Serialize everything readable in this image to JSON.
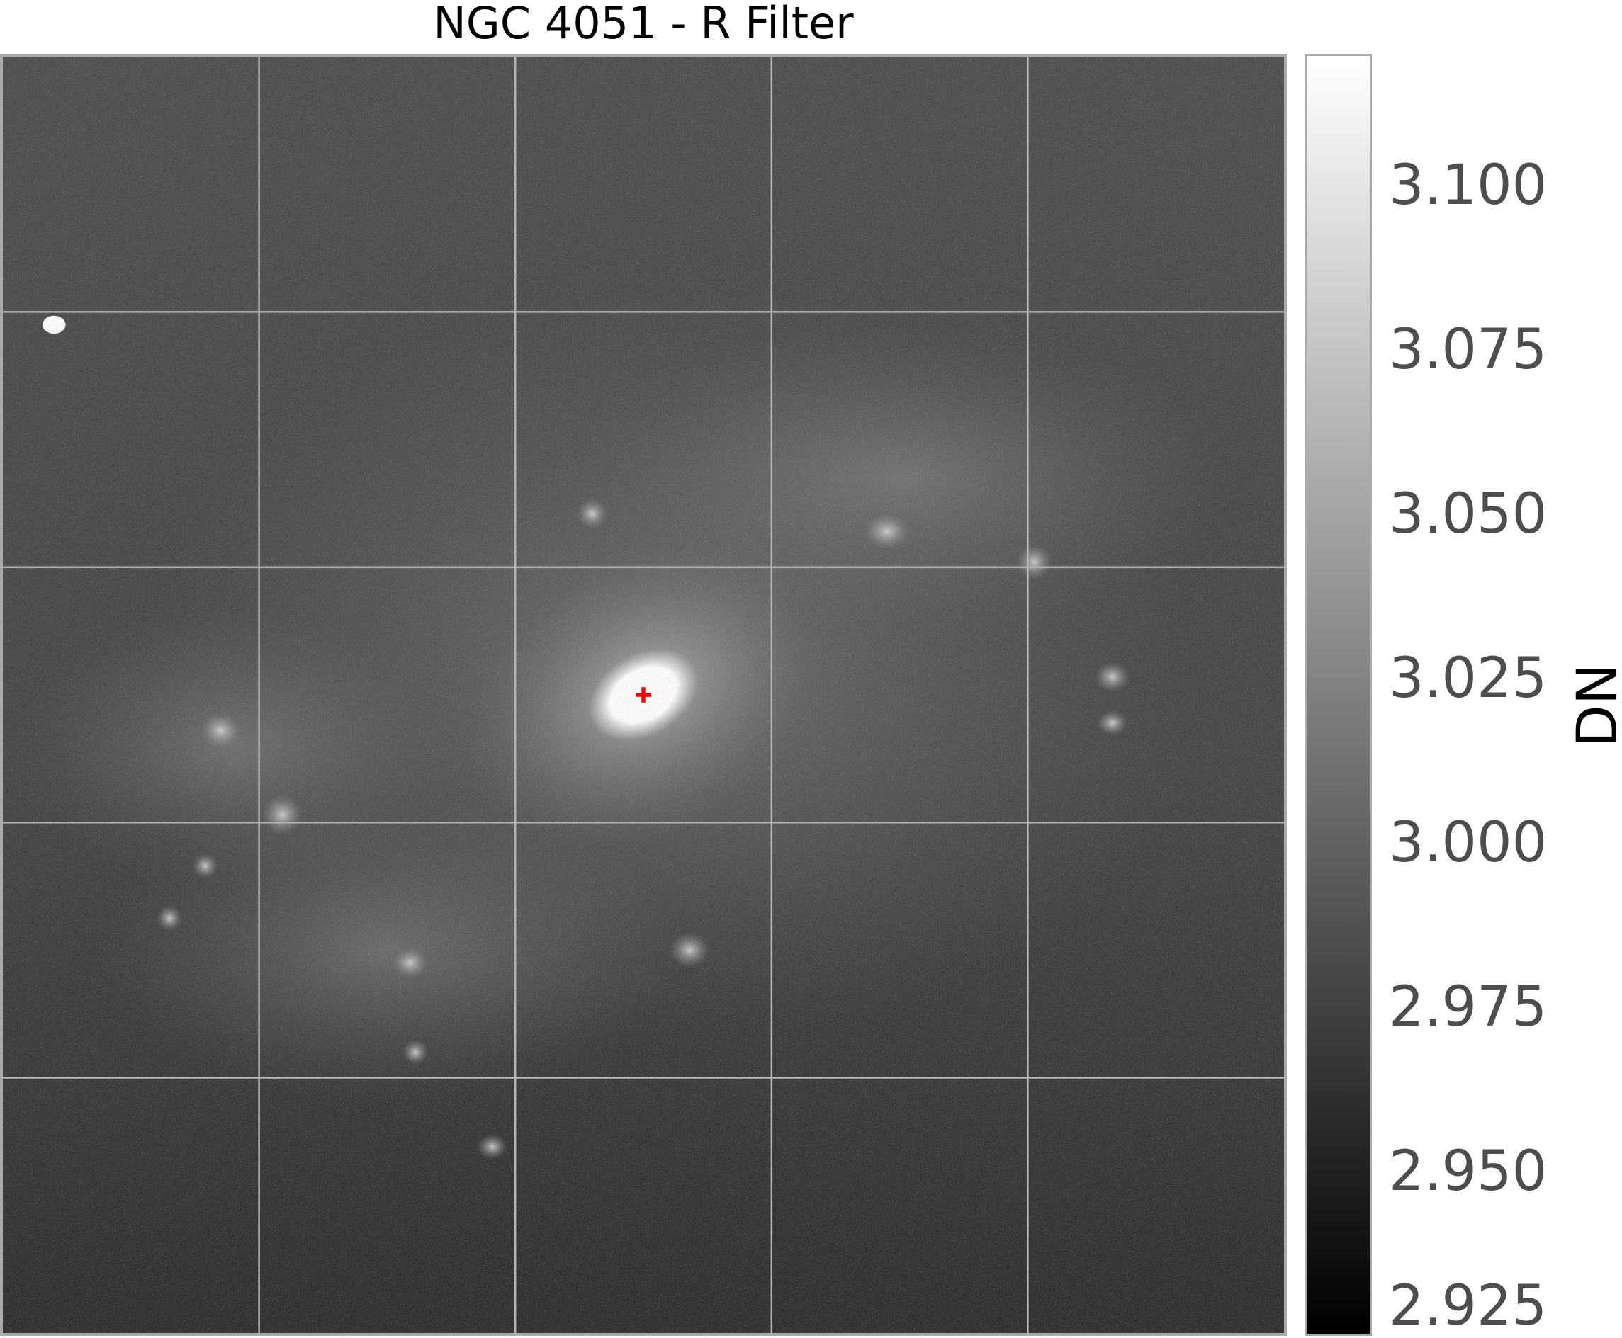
{
  "figure": {
    "title": "NGC 4051 - R Filter",
    "image": {
      "grid": {
        "rows": 5,
        "cols": 5,
        "color": "#b4b4b4"
      },
      "marker": {
        "symbol": "+",
        "color": "#ff0000"
      }
    },
    "colorbar": {
      "label": "DN",
      "ticks": [
        "3.100",
        "3.075",
        "3.050",
        "3.025",
        "3.000",
        "2.975",
        "2.950",
        "2.925"
      ],
      "colormap": "gray",
      "range": [
        2.925,
        3.12
      ]
    }
  }
}
